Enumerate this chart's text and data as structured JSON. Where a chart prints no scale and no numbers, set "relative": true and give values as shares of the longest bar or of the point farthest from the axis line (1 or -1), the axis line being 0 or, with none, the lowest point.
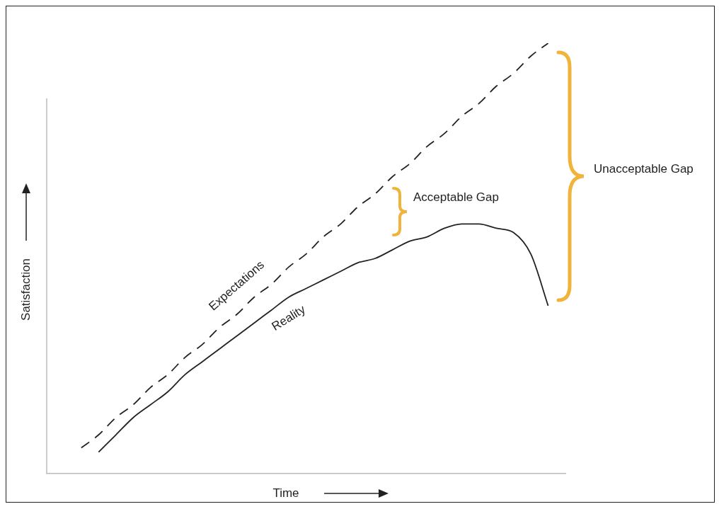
{
  "chart_data": {
    "type": "line",
    "relative": true,
    "xlabel": "Time",
    "ylabel": "Satisfaction",
    "categories": [
      null,
      null,
      null,
      null,
      null,
      null,
      null,
      null,
      null,
      null,
      null,
      null,
      null,
      null,
      null,
      null,
      null,
      null,
      null,
      null,
      null,
      null,
      null,
      null,
      null,
      null,
      null,
      null,
      null,
      null,
      null
    ],
    "series": [
      {
        "name": "Expectations",
        "color": "#222222",
        "line_style": "dashed",
        "values": [
          null,
          null,
          0.06,
          0.09,
          0.13,
          0.16,
          0.2,
          0.23,
          0.27,
          0.3,
          0.34,
          0.37,
          0.41,
          0.44,
          0.48,
          0.51,
          0.55,
          0.58,
          0.62,
          0.65,
          0.69,
          0.72,
          0.76,
          0.79,
          0.83,
          0.86,
          0.9,
          0.93,
          0.97,
          1.0,
          null
        ]
      },
      {
        "name": "Reality",
        "color": "#222222",
        "line_style": "solid",
        "values": [
          null,
          null,
          null,
          0.05,
          0.09,
          0.13,
          0.16,
          0.19,
          0.23,
          0.26,
          0.29,
          0.32,
          0.35,
          0.38,
          0.41,
          0.43,
          0.45,
          0.47,
          0.49,
          0.5,
          0.52,
          0.54,
          0.55,
          0.57,
          0.58,
          0.58,
          0.57,
          0.56,
          0.51,
          0.39,
          null
        ]
      }
    ],
    "annotations": [
      "Acceptable Gap",
      "Unacceptable Gap"
    ],
    "marker": "none",
    "grid": false,
    "legend": false
  }
}
